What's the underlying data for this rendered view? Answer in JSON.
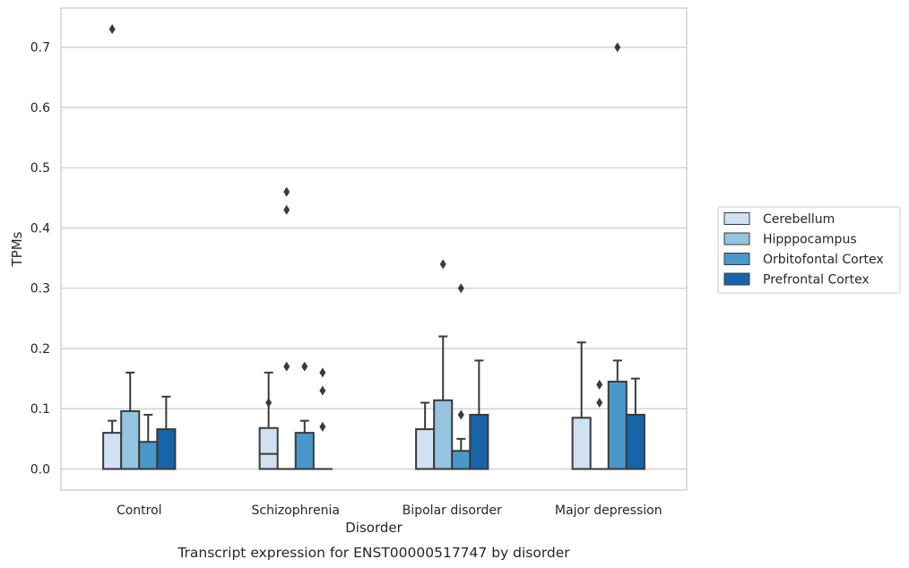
{
  "chart_data": {
    "type": "box",
    "caption": "Transcript expression for ENST00000517747 by disorder",
    "xlabel": "Disorder",
    "ylabel": "TPMs",
    "ylim": [
      -0.035,
      0.765
    ],
    "yticks": [
      "0.0",
      "0.1",
      "0.2",
      "0.3",
      "0.4",
      "0.5",
      "0.6",
      "0.7"
    ],
    "grid": "horizontal",
    "legend_position": "right",
    "categories": [
      "Control",
      "Schizophrenia",
      "Bipolar disorder",
      "Major depression"
    ],
    "series": [
      {
        "name": "Cerebellum",
        "color": "#d0e1f2",
        "boxes": [
          {
            "q1": 0.0,
            "median": 0.0,
            "q3": 0.06,
            "whisker_low": 0.0,
            "whisker_high": 0.08,
            "outliers": [
              0.73
            ]
          },
          {
            "q1": 0.0,
            "median": 0.025,
            "q3": 0.068,
            "whisker_low": 0.0,
            "whisker_high": 0.16,
            "outliers": [
              0.11
            ]
          },
          {
            "q1": 0.0,
            "median": 0.0,
            "q3": 0.066,
            "whisker_low": 0.0,
            "whisker_high": 0.11,
            "outliers": []
          },
          {
            "q1": 0.0,
            "median": 0.0,
            "q3": 0.085,
            "whisker_low": 0.0,
            "whisker_high": 0.21,
            "outliers": []
          }
        ]
      },
      {
        "name": "Hipppocampus",
        "color": "#94c4df",
        "boxes": [
          {
            "q1": 0.0,
            "median": 0.0,
            "q3": 0.096,
            "whisker_low": 0.0,
            "whisker_high": 0.16,
            "outliers": []
          },
          {
            "q1": 0.0,
            "median": 0.0,
            "q3": 0.0,
            "whisker_low": 0.0,
            "whisker_high": 0.0,
            "outliers": [
              0.46,
              0.43,
              0.17
            ]
          },
          {
            "q1": 0.0,
            "median": 0.0,
            "q3": 0.114,
            "whisker_low": 0.0,
            "whisker_high": 0.22,
            "outliers": [
              0.34
            ]
          },
          {
            "q1": 0.0,
            "median": 0.0,
            "q3": 0.0,
            "whisker_low": 0.0,
            "whisker_high": 0.0,
            "outliers": [
              0.14,
              0.11
            ]
          }
        ]
      },
      {
        "name": "Orbitofontal Cortex",
        "color": "#4a98c9",
        "boxes": [
          {
            "q1": 0.0,
            "median": 0.0,
            "q3": 0.045,
            "whisker_low": 0.0,
            "whisker_high": 0.09,
            "outliers": []
          },
          {
            "q1": 0.0,
            "median": 0.0,
            "q3": 0.06,
            "whisker_low": 0.0,
            "whisker_high": 0.08,
            "outliers": [
              0.17
            ]
          },
          {
            "q1": 0.0,
            "median": 0.0,
            "q3": 0.03,
            "whisker_low": 0.0,
            "whisker_high": 0.05,
            "outliers": [
              0.3,
              0.09
            ]
          },
          {
            "q1": 0.0,
            "median": 0.0,
            "q3": 0.145,
            "whisker_low": 0.0,
            "whisker_high": 0.18,
            "outliers": [
              0.7
            ]
          }
        ]
      },
      {
        "name": "Prefrontal Cortex",
        "color": "#1764ab",
        "boxes": [
          {
            "q1": 0.0,
            "median": 0.0,
            "q3": 0.066,
            "whisker_low": 0.0,
            "whisker_high": 0.12,
            "outliers": []
          },
          {
            "q1": 0.0,
            "median": 0.0,
            "q3": 0.0,
            "whisker_low": 0.0,
            "whisker_high": 0.0,
            "outliers": [
              0.16,
              0.13,
              0.07
            ]
          },
          {
            "q1": 0.0,
            "median": 0.0,
            "q3": 0.09,
            "whisker_low": 0.0,
            "whisker_high": 0.18,
            "outliers": []
          },
          {
            "q1": 0.0,
            "median": 0.0,
            "q3": 0.09,
            "whisker_low": 0.0,
            "whisker_high": 0.15,
            "outliers": []
          }
        ]
      }
    ]
  }
}
